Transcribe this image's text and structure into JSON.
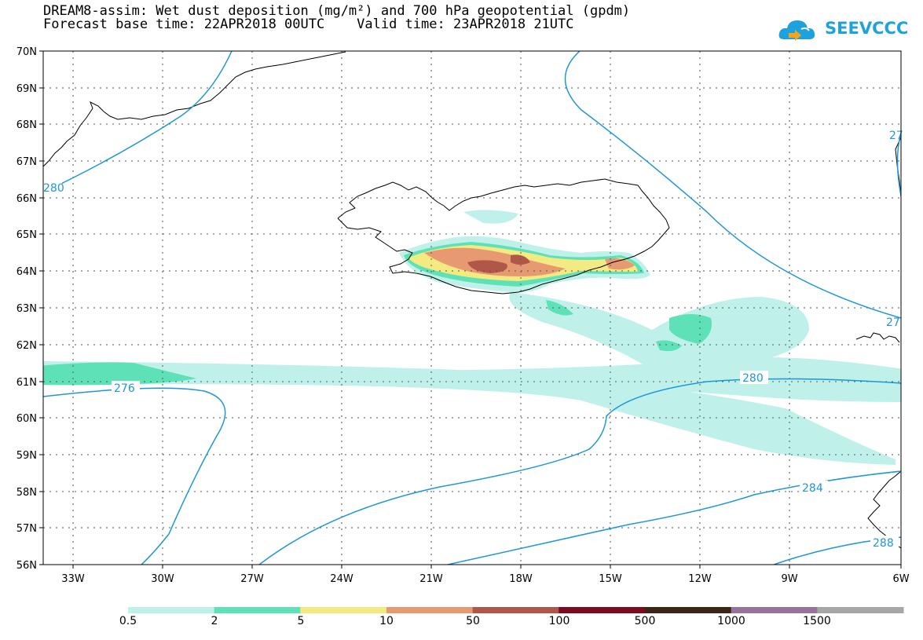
{
  "header": {
    "line1": "DREAM8-assim: Wet dust deposition (mg/m²) and 700 hPa geopotential (gpdm)",
    "line2": "Forecast base time: 22APR2018 00UTC    Valid time: 23APR2018 21UTC"
  },
  "logo": {
    "text": "SEEVCCC",
    "icon": "cloud-icon"
  },
  "map": {
    "lat_labels": [
      "70N",
      "69N",
      "68N",
      "67N",
      "66N",
      "65N",
      "64N",
      "63N",
      "62N",
      "61N",
      "60N",
      "59N",
      "58N",
      "57N",
      "56N"
    ],
    "lon_labels": [
      "33W",
      "30W",
      "27W",
      "24W",
      "21W",
      "18W",
      "15W",
      "12W",
      "9W",
      "6W"
    ],
    "contour_labels": [
      "276",
      "280",
      "284",
      "288",
      "280",
      "27",
      "27"
    ],
    "colors": {
      "contour": "#1e96d8",
      "coast": "#000000"
    }
  },
  "legend": {
    "labels": [
      "0.5",
      "2",
      "5",
      "10",
      "50",
      "100",
      "500",
      "1000",
      "1500"
    ],
    "colors": [
      "#bff1ea",
      "#5ee1b6",
      "#f4ea82",
      "#e79a72",
      "#b0574a",
      "#7e0a22",
      "#3c2516",
      "#98729a",
      "#a6a6a6"
    ]
  }
}
